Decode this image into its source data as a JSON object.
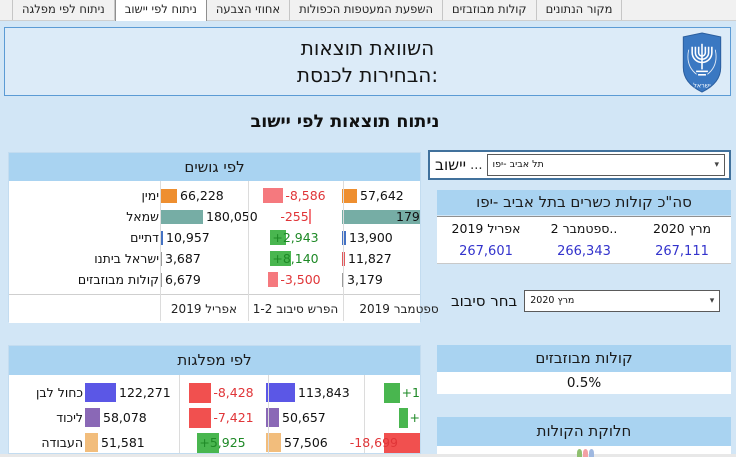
{
  "colors": {
    "page_bg": "#D2E6F6",
    "header_box_bg": "#DCEBF8",
    "header_box_border": "#5B9BD5",
    "panel_header_bg": "#A9D3F1",
    "slicer_border": "#41719C",
    "value_blue": "#3333CC",
    "orange": "#EE8F30",
    "teal": "#76ADA5",
    "blue": "#4472C4",
    "gray": "#9B9B9B",
    "red2": "#E2595C",
    "kachol": "#5B57E6",
    "likud": "#8A68B6",
    "avoda": "#F2BD7C",
    "neg_bar": "#F5797E",
    "neg_bar2": "#F1504F",
    "pos_bar": "#49B64F",
    "neg_text": "#E03538",
    "pos_text": "#1E8926",
    "emblem_blue": "#3A78C2"
  },
  "tabs": [
    {
      "label": "מקור הנתונים",
      "active": false
    },
    {
      "label": "קולות מבוזבזים",
      "active": false
    },
    {
      "label": "השפעת המעטפות הכפולות",
      "active": false
    },
    {
      "label": "אחוזי הצבעה",
      "active": false
    },
    {
      "label": "ניתוח לפי יישוב",
      "active": true
    },
    {
      "label": "ניתוח לפי מפלגה",
      "active": false
    }
  ],
  "header": {
    "title_line1": "השוואת תוצאות",
    "title_line2": "הבחירות לכנסת:",
    "emblem": "israel-state-emblem",
    "emblem_text": "ישראל"
  },
  "page_title": "ניתוח תוצאות לפי יישוב",
  "ui": {
    "dropdown_arrow": "▾"
  },
  "bloc_panel": {
    "title": "לפי גושים",
    "footer": [
      "אפריל 2019",
      "הפרש סיבוב 1-2",
      "ספטמבר 2019"
    ],
    "rows": [
      {
        "label": "ימין",
        "april": {
          "value": "66,228",
          "bar": 17,
          "color": "orange"
        },
        "diff": {
          "value": "-8,586",
          "sign": "neg",
          "bar": 20
        },
        "sept": {
          "value": "57,642",
          "bar": 15,
          "color": "orange"
        }
      },
      {
        "label": "שמאל",
        "april": {
          "value": "180,050",
          "bar": 43,
          "color": "teal"
        },
        "diff": {
          "value": "-255",
          "sign": "neg",
          "bar": 2,
          "order": "text-bar"
        },
        "sept": {
          "value": "179",
          "bar": 78,
          "color": "teal",
          "clip": true
        }
      },
      {
        "label": "דתיים",
        "april": {
          "value": "10,957",
          "bar": 3,
          "color": "blue"
        },
        "diff": {
          "value": "+2,943",
          "sign": "pos",
          "bar": 16,
          "overlap": true
        },
        "sept": {
          "value": "13,900",
          "bar": 4,
          "color": "blue"
        }
      },
      {
        "label": "ישראל ביתנו",
        "april": {
          "value": "3,687",
          "bar": 2,
          "color": "gray"
        },
        "diff": {
          "value": "+8,140",
          "sign": "pos",
          "bar": 21,
          "overlap": true
        },
        "sept": {
          "value": "11,827",
          "bar": 3,
          "color": "red2"
        }
      },
      {
        "label": "קולות מבוזבזים",
        "april": {
          "value": "6,679",
          "bar": 2,
          "color": "gray"
        },
        "diff": {
          "value": "-3,500",
          "sign": "neg",
          "bar": 10
        },
        "sept": {
          "value": "3,179",
          "bar": 2,
          "color": "gray"
        }
      }
    ]
  },
  "party_panel": {
    "title": "לפי מפלגות",
    "rows": [
      {
        "label": "כחול לבן",
        "april": {
          "value": "122,271",
          "bar": 31,
          "color": "kachol"
        },
        "diff1": {
          "value": "-8,428",
          "sign": "neg",
          "bar": 22
        },
        "sept": {
          "value": "113,843",
          "bar": 29,
          "color": "kachol"
        },
        "diff2": {
          "value": "+1",
          "sign": "pos",
          "bar": 16,
          "edge": true
        }
      },
      {
        "label": "ליכוד",
        "april": {
          "value": "58,078",
          "bar": 15,
          "color": "likud"
        },
        "diff1": {
          "value": "-7,421",
          "sign": "neg",
          "bar": 22
        },
        "sept": {
          "value": "50,657",
          "bar": 13,
          "color": "likud"
        },
        "diff2": {
          "value": "+",
          "sign": "pos",
          "bar": 9,
          "edge": true
        }
      },
      {
        "label": "העבודה",
        "april": {
          "value": "51,581",
          "bar": 13,
          "color": "avoda"
        },
        "diff1": {
          "value": "+5,925",
          "sign": "pos",
          "bar": 22,
          "overlap": true
        },
        "sept": {
          "value": "57,506",
          "bar": 15,
          "color": "avoda"
        },
        "diff2": {
          "value": "-18,699",
          "sign": "neg",
          "bar": 36,
          "order": "text-bar",
          "overlap": true,
          "edge": true
        }
      }
    ]
  },
  "locality": {
    "label": "יישוב",
    "more": "...",
    "selected": "תל אביב -יפו"
  },
  "totals": {
    "title": "סה\"כ קולות כשרים בתל אביב -יפו",
    "columns": [
      {
        "header": "מרץ 2020",
        "value": "267,111"
      },
      {
        "header": "ספטמבר 2..",
        "value": "266,343"
      },
      {
        "header": "אפריל 2019",
        "value": "267,601"
      }
    ]
  },
  "round": {
    "label": "בחר סיבוב",
    "selected": "מרץ 2020"
  },
  "wasted": {
    "title": "קולות מבוזבזים",
    "value": "0.5%"
  },
  "distribution": {
    "title": "חלוקת הקולות"
  }
}
